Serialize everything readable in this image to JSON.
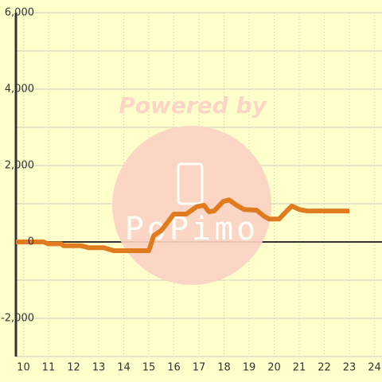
{
  "chart_data": {
    "type": "line",
    "watermark": "Powered by",
    "watermark_brand": "PoPimo",
    "x": [
      9.7,
      10.8,
      11.0,
      11.5,
      11.6,
      12.3,
      12.6,
      13.2,
      13.6,
      15.0,
      15.2,
      15.5,
      16.0,
      16.5,
      16.9,
      17.2,
      17.4,
      17.6,
      17.97,
      18.2,
      18.5,
      18.8,
      19.3,
      19.6,
      19.8,
      20.2,
      20.5,
      20.7,
      21.0,
      21.3,
      23.0
    ],
    "series": [
      {
        "color": "#e07b20",
        "values": [
          0,
          0,
          -50,
          -50,
          -100,
          -100,
          -150,
          -150,
          -230,
          -230,
          170,
          300,
          730,
          730,
          920,
          960,
          790,
          810,
          1060,
          1100,
          960,
          850,
          830,
          670,
          600,
          600,
          810,
          940,
          850,
          810,
          810
        ]
      }
    ],
    "xlim": [
      9.7,
      24.3
    ],
    "xticks": [
      10,
      11,
      12,
      13,
      14,
      15,
      16,
      17,
      18,
      19,
      20,
      21,
      22,
      23,
      24
    ],
    "ylim": [
      -3000,
      6000
    ],
    "yticks": [
      {
        "value": -2000,
        "label": "-2,000"
      },
      0,
      {
        "value": 2000,
        "label": "2,000"
      },
      {
        "value": 4000,
        "label": "4,000"
      },
      {
        "value": 6000,
        "label": "6,000"
      }
    ],
    "y_minor_ticks": [
      -3000,
      -1000,
      1000,
      3000,
      5000
    ],
    "grid": true
  }
}
